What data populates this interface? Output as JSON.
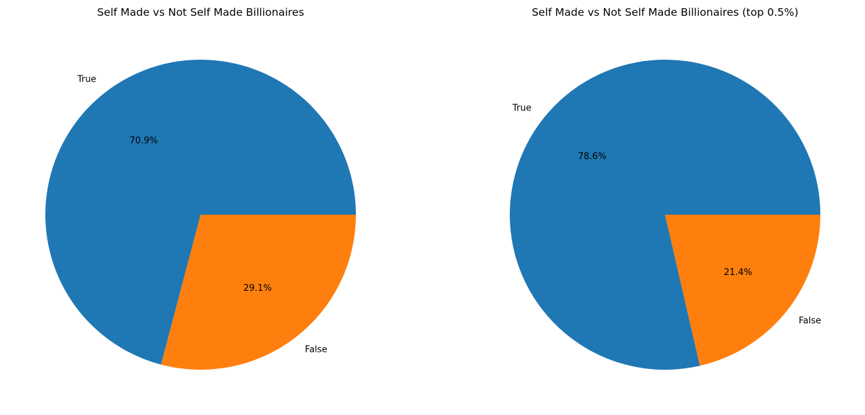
{
  "chart_data": [
    {
      "type": "pie",
      "title": "Self Made vs Not Self Made Billionaires",
      "categories": [
        "True",
        "False"
      ],
      "values": [
        70.9,
        29.1
      ],
      "value_labels": [
        "70.9%",
        "29.1%"
      ],
      "colors": [
        "#1f77b4",
        "#ff7f0e"
      ],
      "start": "right",
      "direction": "counterclockwise"
    },
    {
      "type": "pie",
      "title": "Self Made vs Not Self Made Billionaires (top 0.5%)",
      "categories": [
        "True",
        "False"
      ],
      "values": [
        78.6,
        21.4
      ],
      "value_labels": [
        "78.6%",
        "21.4%"
      ],
      "colors": [
        "#1f77b4",
        "#ff7f0e"
      ],
      "start": "right",
      "direction": "counterclockwise"
    }
  ]
}
